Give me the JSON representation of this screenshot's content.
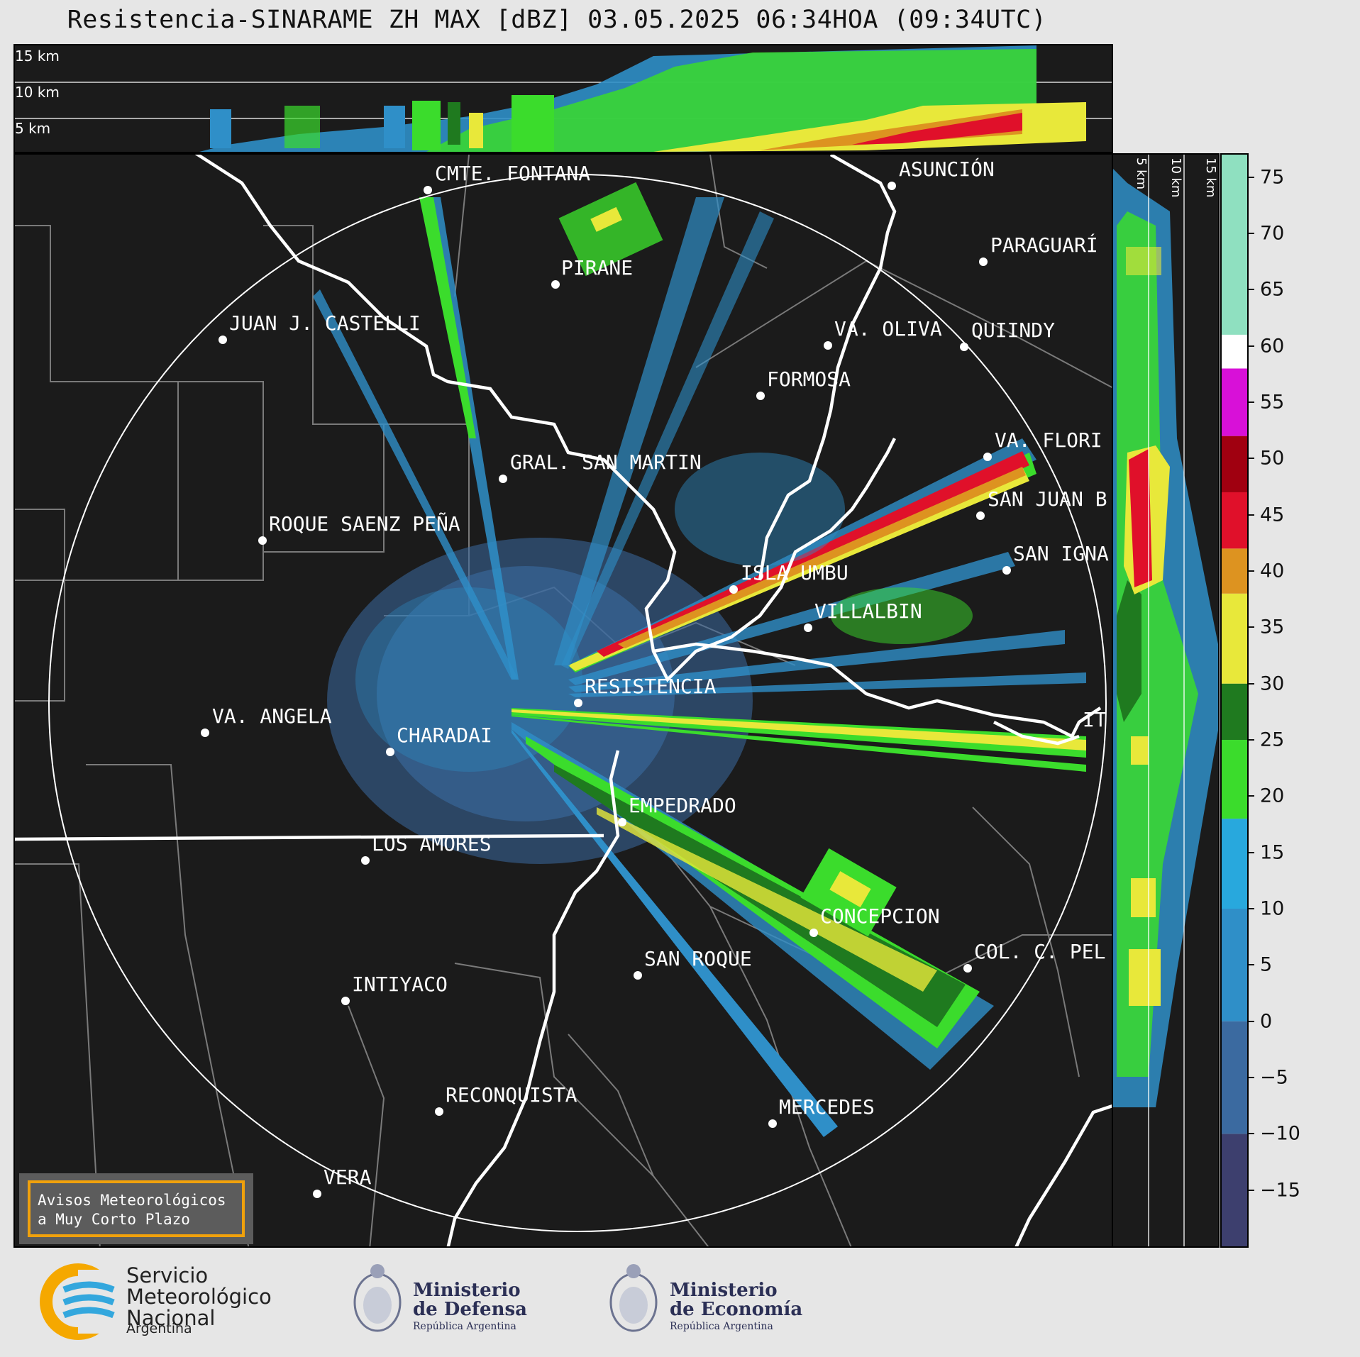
{
  "header": {
    "title": "Resistencia-SINARAME ZH MAX [dBZ] 03.05.2025 06:34HOA (09:34UTC)"
  },
  "top_panel": {
    "height_labels": [
      "15 km",
      "10 km",
      "5 km"
    ]
  },
  "side_panel": {
    "height_labels": [
      "5 km",
      "10 km",
      "15 km"
    ]
  },
  "colorbar": {
    "unit": "dBZ",
    "ticks": [
      75,
      70,
      65,
      60,
      55,
      50,
      45,
      40,
      35,
      30,
      25,
      20,
      15,
      10,
      5,
      0,
      -5,
      -10,
      -15
    ],
    "tick_labels": [
      "75",
      "70",
      "65",
      "60",
      "55",
      "50",
      "45",
      "40",
      "35",
      "30",
      "25",
      "20",
      "15",
      "10",
      "5",
      "0",
      "−5",
      "−10",
      "−15"
    ],
    "range": [
      -20,
      77
    ],
    "colors": {
      "neg": "#3d3f6e",
      "low": "#3b6aa0",
      "mid_blue": "#2f8fc8",
      "light_blue": "#28a8dd",
      "green": "#3bdc2c",
      "dark_green": "#1f7a1f",
      "yellow": "#e8e83a",
      "orange": "#dd9320",
      "red": "#e0102a",
      "dark_red": "#a00010",
      "magenta": "#d810d8",
      "white": "#ffffff",
      "mint": "#8fe0c0"
    }
  },
  "map": {
    "radar_site": "RESISTENCIA",
    "cities": [
      "CMTE. FONTANA",
      "ASUNCIÓN",
      "PARAGUARÍ",
      "PIRANE",
      "JUAN J. CASTELLI",
      "VA. OLIVA",
      "QUIINDY",
      "FORMOSA",
      "VA. FLORI",
      "GRAL. SAN MARTIN",
      "SAN JUAN B",
      "ROQUE SAENZ PEÑA",
      "SAN IGNA",
      "ISLA UMBU",
      "VILLALBIN",
      "RESISTENCIA",
      "IT",
      "VA. ANGELA",
      "CHARADAI",
      "EMPEDRADO",
      "LOS AMORES",
      "CONCEPCION",
      "SAN ROQUE",
      "COL. C. PEL",
      "INTIYACO",
      "RECONQUISTA",
      "MERCEDES",
      "VERA"
    ],
    "notice": {
      "line1": "Avisos Meteorológicos",
      "line2": "a Muy Corto Plazo"
    }
  },
  "footer": {
    "smn": {
      "line1": "Servicio",
      "line2": "Meteorológico",
      "line3": "Nacional",
      "country": "Argentina"
    },
    "defensa": {
      "line1": "Ministerio",
      "line2": "de Defensa",
      "line3": "República Argentina"
    },
    "economia": {
      "line1": "Ministerio",
      "line2": "de Economía",
      "line3": "República Argentina"
    }
  }
}
